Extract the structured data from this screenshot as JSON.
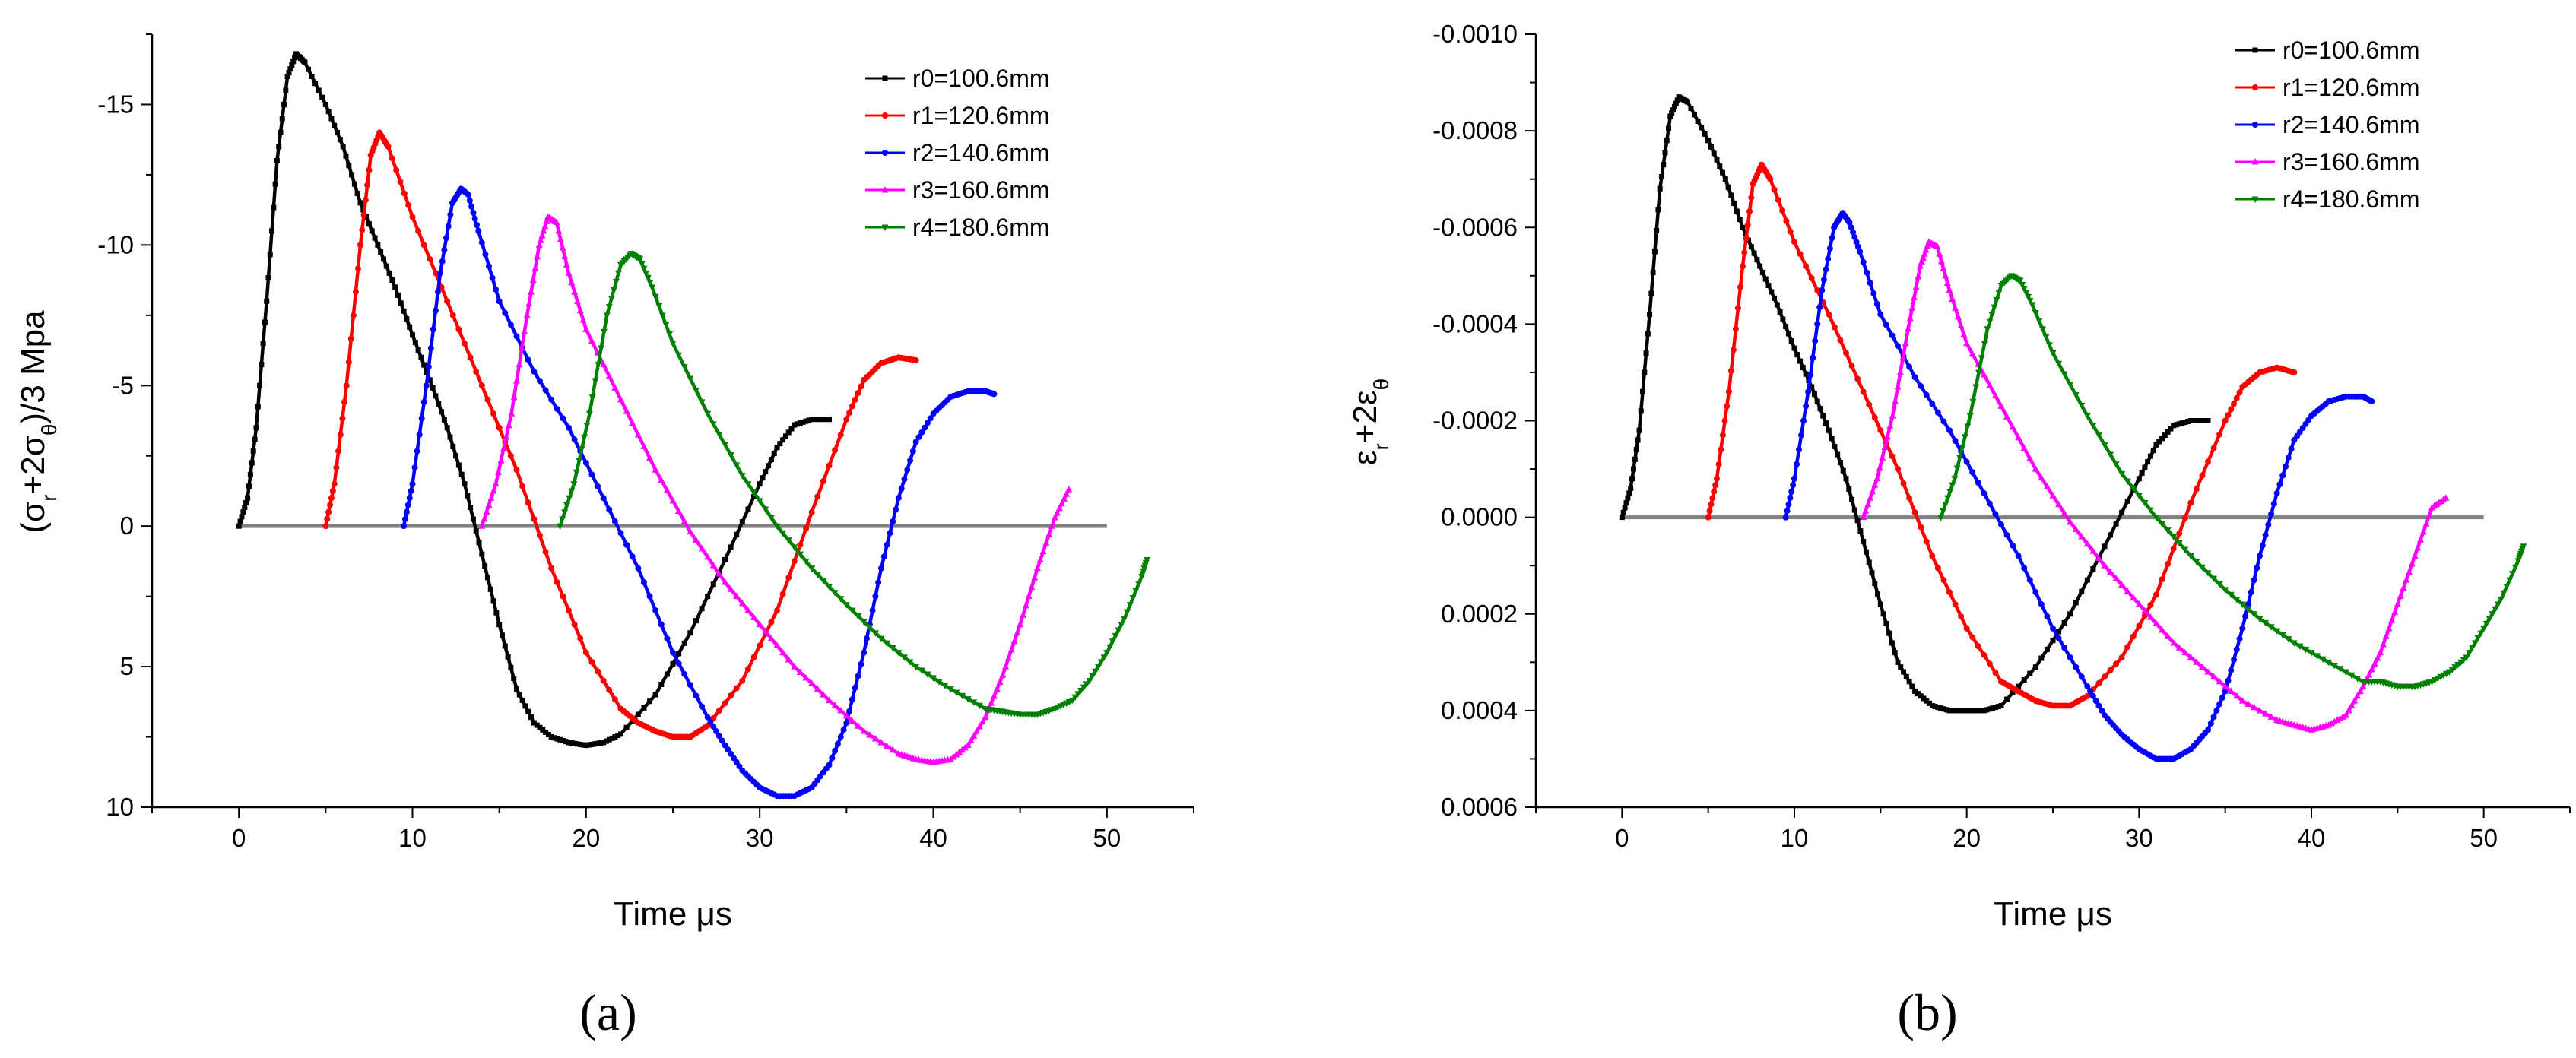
{
  "figure": {
    "panel_labels": [
      "(a)",
      "(b)"
    ]
  },
  "chart_data": [
    {
      "type": "line",
      "panel": "(a)",
      "title": "",
      "xlabel": "Time  μs",
      "ylabel_parts": [
        "(σ",
        "r",
        "+2σ",
        "θ",
        ")/3  Mpa"
      ],
      "xlim": [
        -5,
        55
      ],
      "ylim": [
        -17.5,
        10
      ],
      "y_inverted": true,
      "xticks": [
        0,
        10,
        20,
        30,
        40,
        50
      ],
      "xtick_labels": [
        "0",
        "10",
        "20",
        "30",
        "40",
        "50"
      ],
      "yticks": [
        -15,
        -10,
        -5,
        0,
        5,
        10
      ],
      "ytick_labels": [
        "-15",
        "-10",
        "-5",
        "0",
        "5",
        "10"
      ],
      "legend_position": "top-right",
      "baseline": {
        "x": [
          0,
          50
        ],
        "y": 0,
        "color": "#808080"
      },
      "series": [
        {
          "name": "r0=100.6mm",
          "color": "#000000",
          "marker": "square",
          "x": [
            0,
            0.5,
            1,
            1.6,
            2.2,
            2.8,
            3.3,
            3.8,
            5,
            6,
            7,
            8,
            9,
            10,
            11,
            12,
            13,
            14,
            15,
            16,
            17,
            18,
            19,
            20,
            21,
            22,
            24,
            26,
            28,
            30,
            31,
            32,
            33,
            34
          ],
          "y": [
            0,
            -1,
            -3.5,
            -8,
            -13,
            -16,
            -16.8,
            -16.5,
            -15,
            -13.5,
            -11.5,
            -10,
            -8.5,
            -6.8,
            -5.2,
            -3.5,
            -1.5,
            1,
            3.5,
            5.8,
            7,
            7.5,
            7.7,
            7.8,
            7.7,
            7.4,
            6,
            3.8,
            1.2,
            -1.5,
            -2.8,
            -3.6,
            -3.8,
            -3.8
          ]
        },
        {
          "name": "r1=120.6mm",
          "color": "#ff0000",
          "marker": "circle",
          "x": [
            5,
            5.5,
            6.2,
            7,
            7.6,
            8.1,
            8.6,
            10,
            12,
            14,
            16,
            18,
            20,
            22,
            23,
            24,
            25,
            26,
            27,
            29,
            31,
            33,
            35,
            36,
            37,
            38,
            39
          ],
          "y": [
            0,
            -1.5,
            -5,
            -10,
            -13.2,
            -14,
            -13.5,
            -11,
            -8,
            -5,
            -2,
            1.5,
            4.5,
            6.5,
            7,
            7.3,
            7.5,
            7.5,
            7.1,
            5.5,
            3,
            -0.5,
            -3.8,
            -5.2,
            -5.8,
            -6,
            -5.9
          ]
        },
        {
          "name": "r2=140.6mm",
          "color": "#0000ff",
          "marker": "circle",
          "x": [
            9.5,
            10,
            10.8,
            11.6,
            12.3,
            12.8,
            13.2,
            13.8,
            15,
            17,
            19,
            21,
            23,
            25,
            27,
            28,
            29,
            30,
            31,
            32,
            33,
            34,
            35,
            36,
            37,
            38,
            39,
            40,
            41,
            42,
            43,
            43.5
          ],
          "y": [
            0,
            -1.5,
            -5,
            -9,
            -11.5,
            -12,
            -11.8,
            -10.5,
            -8,
            -5.5,
            -3.5,
            -1,
            1.5,
            4.5,
            6.8,
            7.8,
            8.7,
            9.3,
            9.6,
            9.6,
            9.3,
            8.5,
            7,
            4.5,
            1.5,
            -1,
            -3,
            -4,
            -4.6,
            -4.8,
            -4.8,
            -4.7
          ]
        },
        {
          "name": "r3=160.6mm",
          "color": "#ff00ff",
          "marker": "triangle-up",
          "x": [
            14,
            14.8,
            15.7,
            16.6,
            17.3,
            17.8,
            18.3,
            19,
            20,
            22,
            24,
            26,
            28,
            30,
            32,
            34,
            36,
            38,
            39,
            40,
            41,
            42,
            43,
            44,
            45,
            46,
            47,
            47.8
          ],
          "y": [
            0,
            -1.5,
            -4,
            -7.5,
            -10,
            -11,
            -10.8,
            -9,
            -7,
            -4.5,
            -2,
            0.2,
            2,
            3.5,
            5,
            6.2,
            7.3,
            8.1,
            8.3,
            8.4,
            8.3,
            7.8,
            6.8,
            5.3,
            3.5,
            1.5,
            -0.3,
            -1.3
          ]
        },
        {
          "name": "r4=180.6mm",
          "color": "#008000",
          "marker": "triangle-down",
          "x": [
            18.5,
            19.3,
            20.2,
            21.2,
            22,
            22.6,
            23.1,
            23.8,
            25,
            27,
            29,
            31,
            33,
            35,
            37,
            39,
            41,
            43,
            44,
            45,
            46,
            47,
            48,
            49,
            50,
            51,
            52,
            52.3
          ],
          "y": [
            0,
            -1.5,
            -4,
            -7.5,
            -9.3,
            -9.7,
            -9.5,
            -8.5,
            -6.5,
            -4,
            -1.8,
            0,
            1.5,
            2.8,
            4,
            5,
            5.8,
            6.5,
            6.6,
            6.7,
            6.7,
            6.5,
            6.2,
            5.5,
            4.5,
            3.3,
            1.8,
            1.2
          ]
        }
      ]
    },
    {
      "type": "line",
      "panel": "(b)",
      "title": "",
      "xlabel": "Time  μs",
      "ylabel_parts": [
        "ε",
        "r",
        "+2ε",
        "θ"
      ],
      "xlim": [
        -5,
        55
      ],
      "ylim": [
        -0.001,
        0.0006
      ],
      "y_inverted": true,
      "xticks": [
        0,
        10,
        20,
        30,
        40,
        50
      ],
      "xtick_labels": [
        "0",
        "10",
        "20",
        "30",
        "40",
        "50"
      ],
      "yticks": [
        -0.001,
        -0.0008,
        -0.0006,
        -0.0004,
        -0.0002,
        0,
        0.0002,
        0.0004,
        0.0006
      ],
      "ytick_labels": [
        "-0.0010",
        "-0.0008",
        "-0.0006",
        "-0.0004",
        "-0.0002",
        "0.0000",
        "0.0002",
        "0.0004",
        "0.0006"
      ],
      "legend_position": "top-right",
      "baseline": {
        "x": [
          0,
          50
        ],
        "y": 0,
        "color": "#808080"
      },
      "series": [
        {
          "name": "r0=100.6mm",
          "color": "#000000",
          "marker": "square",
          "x": [
            0,
            0.5,
            1,
            1.6,
            2.2,
            2.8,
            3.3,
            3.8,
            5,
            6,
            7,
            8,
            9,
            10,
            11,
            12,
            13,
            14,
            15,
            16,
            17,
            18,
            19,
            20,
            21,
            22,
            24,
            26,
            28,
            30,
            31,
            32,
            33,
            34
          ],
          "y": [
            0,
            -6e-05,
            -0.00018,
            -0.00042,
            -0.00068,
            -0.00083,
            -0.00087,
            -0.00086,
            -0.00078,
            -0.0007,
            -0.0006,
            -0.00052,
            -0.00044,
            -0.00035,
            -0.00027,
            -0.00018,
            -8e-05,
            5e-05,
            0.00018,
            0.0003,
            0.00036,
            0.00039,
            0.0004,
            0.0004,
            0.0004,
            0.00039,
            0.00031,
            0.0002,
            6e-05,
            -8e-05,
            -0.00015,
            -0.00019,
            -0.0002,
            -0.0002
          ]
        },
        {
          "name": "r1=120.6mm",
          "color": "#ff0000",
          "marker": "circle",
          "x": [
            5,
            5.5,
            6.2,
            7,
            7.6,
            8.1,
            8.6,
            10,
            12,
            14,
            16,
            18,
            20,
            22,
            23,
            24,
            25,
            26,
            27,
            29,
            31,
            33,
            35,
            36,
            37,
            38,
            39
          ],
          "y": [
            0,
            -8e-05,
            -0.00026,
            -0.00052,
            -0.00069,
            -0.00073,
            -0.0007,
            -0.00057,
            -0.00042,
            -0.00026,
            -0.0001,
            8e-05,
            0.00023,
            0.00034,
            0.00036,
            0.00038,
            0.00039,
            0.00039,
            0.00037,
            0.00029,
            0.00016,
            -3e-05,
            -0.0002,
            -0.00027,
            -0.0003,
            -0.00031,
            -0.0003
          ]
        },
        {
          "name": "r2=140.6mm",
          "color": "#0000ff",
          "marker": "circle",
          "x": [
            9.5,
            10,
            10.8,
            11.6,
            12.3,
            12.8,
            13.2,
            13.8,
            15,
            17,
            19,
            21,
            23,
            25,
            27,
            28,
            29,
            30,
            31,
            32,
            33,
            34,
            35,
            36,
            37,
            38,
            39,
            40,
            41,
            42,
            43,
            43.5
          ],
          "y": [
            0,
            -8e-05,
            -0.00026,
            -0.00047,
            -0.0006,
            -0.00063,
            -0.00061,
            -0.00055,
            -0.00042,
            -0.00029,
            -0.00018,
            -5e-05,
            8e-05,
            0.00023,
            0.00035,
            0.00041,
            0.00045,
            0.00048,
            0.0005,
            0.0005,
            0.00048,
            0.00044,
            0.00036,
            0.00023,
            8e-05,
            -5e-05,
            -0.00016,
            -0.00021,
            -0.00024,
            -0.00025,
            -0.00025,
            -0.00024
          ]
        },
        {
          "name": "r3=160.6mm",
          "color": "#ff00ff",
          "marker": "triangle-up",
          "x": [
            14,
            14.8,
            15.7,
            16.6,
            17.3,
            17.8,
            18.3,
            19,
            20,
            22,
            24,
            26,
            28,
            30,
            32,
            34,
            36,
            38,
            39,
            40,
            41,
            42,
            43,
            44,
            45,
            46,
            47,
            47.8
          ],
          "y": [
            0,
            -8e-05,
            -0.00021,
            -0.00039,
            -0.00052,
            -0.00057,
            -0.00056,
            -0.00047,
            -0.00036,
            -0.00023,
            -0.0001,
            1e-05,
            0.0001,
            0.00018,
            0.00026,
            0.00032,
            0.00038,
            0.00042,
            0.00043,
            0.00044,
            0.00043,
            0.00041,
            0.00035,
            0.00028,
            0.00018,
            8e-05,
            -2e-05,
            -4e-05
          ]
        },
        {
          "name": "r4=180.6mm",
          "color": "#008000",
          "marker": "triangle-down",
          "x": [
            18.5,
            19.3,
            20.2,
            21.2,
            22,
            22.6,
            23.1,
            23.8,
            25,
            27,
            29,
            31,
            33,
            35,
            37,
            39,
            41,
            43,
            44,
            45,
            46,
            47,
            48,
            49,
            50,
            51,
            52,
            52.3
          ],
          "y": [
            0,
            -8e-05,
            -0.00021,
            -0.00039,
            -0.00048,
            -0.0005,
            -0.00049,
            -0.00044,
            -0.00034,
            -0.00021,
            -9e-05,
            0,
            8e-05,
            0.00015,
            0.00021,
            0.00026,
            0.0003,
            0.00034,
            0.00034,
            0.00035,
            0.00035,
            0.00034,
            0.00032,
            0.00029,
            0.00023,
            0.00017,
            9e-05,
            6e-05
          ]
        }
      ]
    }
  ]
}
